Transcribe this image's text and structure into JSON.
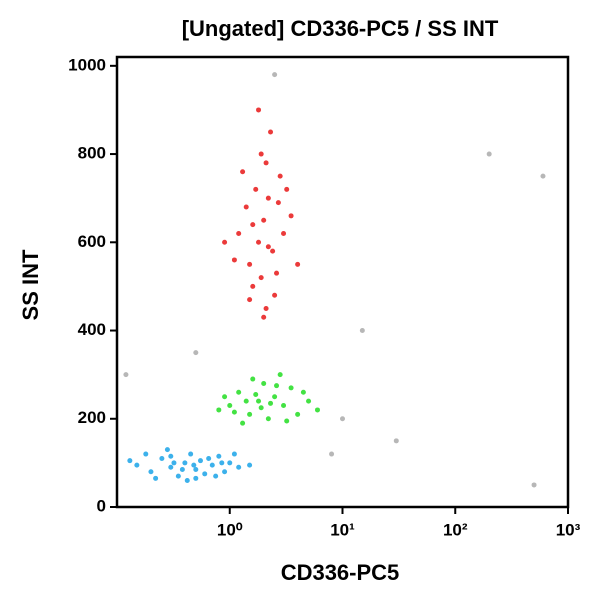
{
  "chart_data": {
    "type": "scatter",
    "title": "[Ungated] CD336-PC5 / SS INT",
    "x_label": "CD336-PC5",
    "y_label": "SS INT",
    "x_log": true,
    "xlim": [
      0.1,
      1000
    ],
    "ylim": [
      0,
      1020
    ],
    "xticks": [
      {
        "value": 1,
        "label": "10⁰"
      },
      {
        "value": 10,
        "label": "10¹"
      },
      {
        "value": 100,
        "label": "10²"
      },
      {
        "value": 1000,
        "label": "10³"
      }
    ],
    "yticks": [
      0,
      200,
      400,
      600,
      800,
      1000
    ],
    "series": [
      {
        "color": "#1aa3e8",
        "x": [
          0.15,
          0.2,
          0.25,
          0.3,
          0.35,
          0.4,
          0.45,
          0.5,
          0.55,
          0.6,
          0.7,
          0.8,
          0.9,
          1.0,
          1.2,
          0.13,
          0.18,
          0.22,
          0.28,
          0.32,
          0.38,
          0.42,
          0.48,
          0.65,
          0.75,
          0.85,
          1.1,
          1.5,
          0.3,
          0.5
        ],
        "values": [
          95,
          80,
          110,
          90,
          70,
          100,
          120,
          85,
          105,
          75,
          95,
          115,
          80,
          100,
          90,
          105,
          120,
          65,
          130,
          100,
          85,
          60,
          95,
          110,
          70,
          100,
          120,
          95,
          115,
          65
        ]
      },
      {
        "color": "#22dd22",
        "x": [
          1.0,
          1.2,
          1.5,
          1.8,
          2.0,
          2.2,
          2.5,
          3.0,
          3.5,
          4.0,
          0.9,
          1.3,
          1.6,
          2.8,
          5.0,
          6.0,
          1.1,
          1.7,
          2.3,
          1.4,
          3.2,
          0.8,
          2.6,
          4.5,
          1.9
        ],
        "values": [
          230,
          260,
          210,
          240,
          280,
          200,
          250,
          230,
          270,
          210,
          250,
          190,
          290,
          300,
          240,
          220,
          215,
          255,
          235,
          240,
          195,
          220,
          275,
          260,
          225
        ]
      },
      {
        "color": "#e81818",
        "x": [
          1.5,
          1.8,
          2.0,
          2.2,
          1.6,
          2.4,
          1.2,
          2.8,
          1.9,
          2.1,
          1.4,
          2.6,
          3.0,
          1.7,
          2.3,
          1.1,
          3.5,
          2.0,
          1.3,
          2.5,
          1.8,
          2.7,
          1.6,
          2.2,
          4.0,
          0.9,
          1.9,
          2.1,
          3.2,
          1.5
        ],
        "values": [
          550,
          600,
          650,
          700,
          500,
          580,
          620,
          750,
          800,
          450,
          680,
          530,
          620,
          720,
          850,
          560,
          660,
          430,
          760,
          480,
          900,
          690,
          640,
          590,
          550,
          600,
          520,
          780,
          720,
          470
        ]
      },
      {
        "color": "#aaaaaa",
        "x": [
          0.12,
          0.5,
          2.5,
          10,
          30,
          200,
          500,
          600,
          8,
          15
        ],
        "values": [
          300,
          350,
          980,
          200,
          150,
          800,
          50,
          750,
          120,
          400
        ]
      }
    ]
  }
}
